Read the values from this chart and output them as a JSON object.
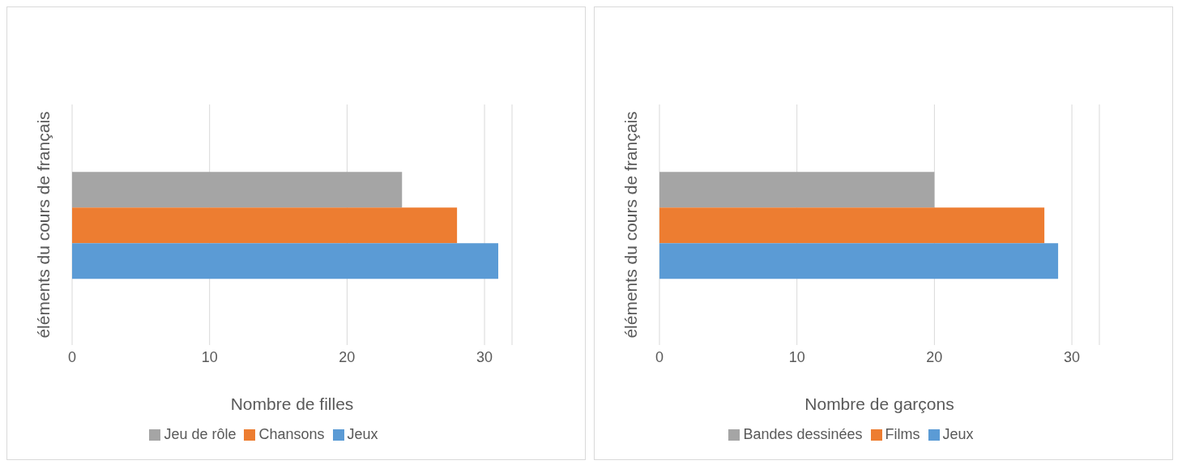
{
  "chart_data": [
    {
      "type": "bar",
      "orientation": "horizontal",
      "categories": [
        null
      ],
      "xlabel": "Nombre de filles",
      "ylabel": "éléments du cours de français",
      "xlim": [
        0,
        32
      ],
      "xticks": [
        0,
        10,
        20,
        30
      ],
      "grid": "x",
      "legend": "bottom",
      "series": [
        {
          "name": "Jeu de rôle",
          "color": "#a5a5a5",
          "values": [
            24
          ]
        },
        {
          "name": "Chansons",
          "color": "#ed7d31",
          "values": [
            28
          ]
        },
        {
          "name": "Jeux",
          "color": "#5b9bd5",
          "values": [
            31
          ]
        }
      ]
    },
    {
      "type": "bar",
      "orientation": "horizontal",
      "categories": [
        null
      ],
      "xlabel": "Nombre de garçons",
      "ylabel": "éléments du cours de français",
      "xlim": [
        0,
        32
      ],
      "xticks": [
        0,
        10,
        20,
        30
      ],
      "grid": "x",
      "legend": "bottom",
      "series": [
        {
          "name": "Bandes dessinées",
          "color": "#a5a5a5",
          "values": [
            20
          ]
        },
        {
          "name": "Films",
          "color": "#ed7d31",
          "values": [
            28
          ]
        },
        {
          "name": "Jeux",
          "color": "#5b9bd5",
          "values": [
            29
          ]
        }
      ]
    }
  ]
}
